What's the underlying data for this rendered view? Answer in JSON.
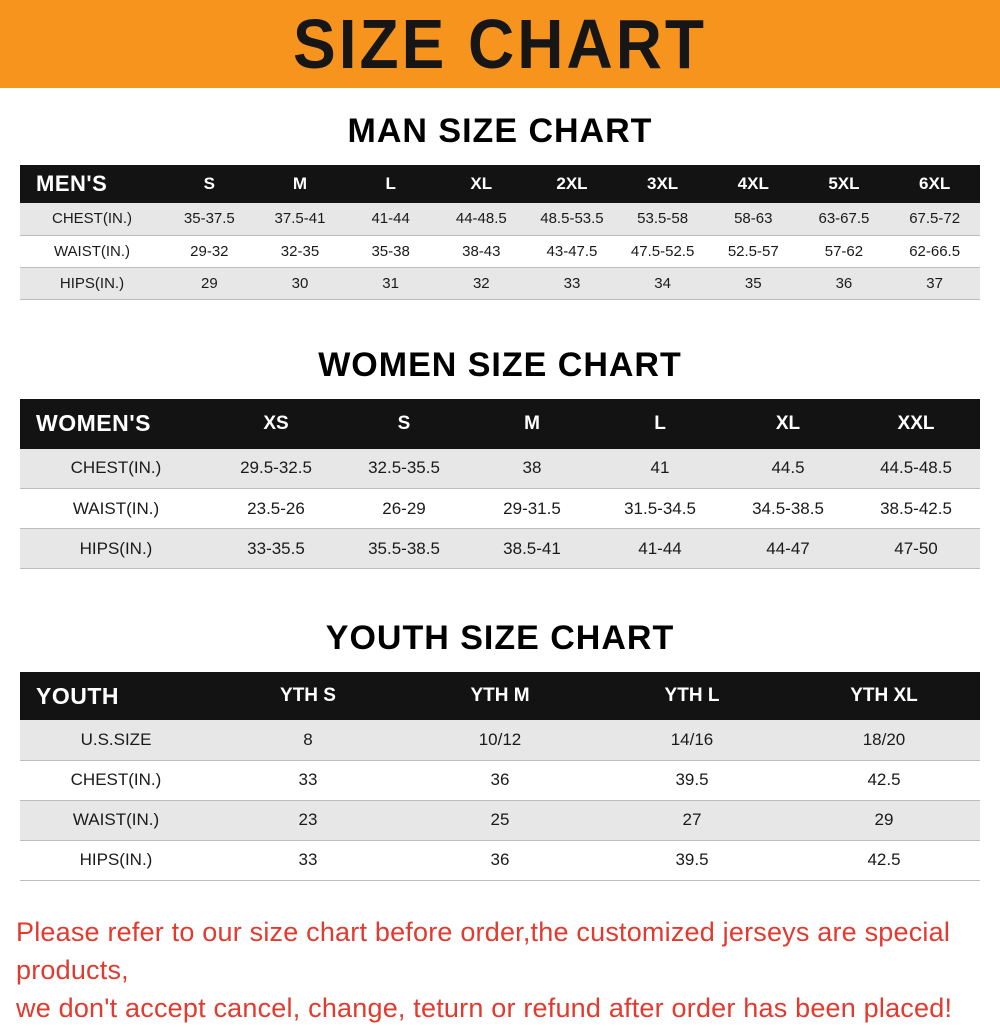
{
  "banner": {
    "title": "SIZE CHART"
  },
  "colors": {
    "banner_bg": "#f7941d",
    "header_bg": "#131313",
    "row_alt": "#e7e7e7",
    "note_red": "#e23a2e"
  },
  "man": {
    "title": "MAN SIZE CHART",
    "columns": [
      "MEN'S",
      "S",
      "M",
      "L",
      "XL",
      "2XL",
      "3XL",
      "4XL",
      "5XL",
      "6XL"
    ],
    "rows": [
      {
        "label": "CHEST(IN.)",
        "values": [
          "35-37.5",
          "37.5-41",
          "41-44",
          "44-48.5",
          "48.5-53.5",
          "53.5-58",
          "58-63",
          "63-67.5",
          "67.5-72"
        ]
      },
      {
        "label": "WAIST(IN.)",
        "values": [
          "29-32",
          "32-35",
          "35-38",
          "38-43",
          "43-47.5",
          "47.5-52.5",
          "52.5-57",
          "57-62",
          "62-66.5"
        ]
      },
      {
        "label": "HIPS(IN.)",
        "values": [
          "29",
          "30",
          "31",
          "32",
          "33",
          "34",
          "35",
          "36",
          "37"
        ]
      }
    ]
  },
  "women": {
    "title": "WOMEN SIZE CHART",
    "columns": [
      "WOMEN'S",
      "XS",
      "S",
      "M",
      "L",
      "XL",
      "XXL"
    ],
    "rows": [
      {
        "label": "CHEST(IN.)",
        "values": [
          "29.5-32.5",
          "32.5-35.5",
          "38",
          "41",
          "44.5",
          "44.5-48.5"
        ]
      },
      {
        "label": "WAIST(IN.)",
        "values": [
          "23.5-26",
          "26-29",
          "29-31.5",
          "31.5-34.5",
          "34.5-38.5",
          "38.5-42.5"
        ]
      },
      {
        "label": "HIPS(IN.)",
        "values": [
          "33-35.5",
          "35.5-38.5",
          "38.5-41",
          "41-44",
          "44-47",
          "47-50"
        ]
      }
    ]
  },
  "youth": {
    "title": "YOUTH SIZE CHART",
    "columns": [
      "YOUTH",
      "YTH S",
      "YTH M",
      "YTH L",
      "YTH XL"
    ],
    "rows": [
      {
        "label": "U.S.SIZE",
        "values": [
          "8",
          "10/12",
          "14/16",
          "18/20"
        ]
      },
      {
        "label": "CHEST(IN.)",
        "values": [
          "33",
          "36",
          "39.5",
          "42.5"
        ]
      },
      {
        "label": "WAIST(IN.)",
        "values": [
          "23",
          "25",
          "27",
          "29"
        ]
      },
      {
        "label": "HIPS(IN.)",
        "values": [
          "33",
          "36",
          "39.5",
          "42.5"
        ]
      }
    ]
  },
  "note": {
    "line1": "Please refer to our size chart before order,the customized jerseys are special products,",
    "line2": "we don't accept cancel, change, teturn or refund after order has been placed!"
  }
}
